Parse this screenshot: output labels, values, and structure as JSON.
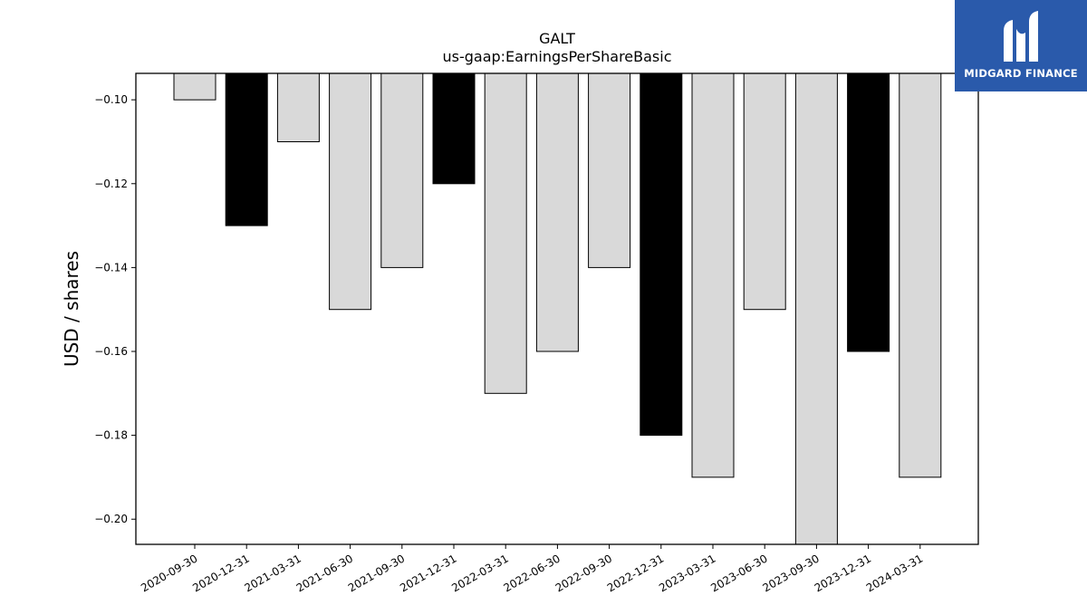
{
  "brand": {
    "name": "MIDGARD FINANCE",
    "logo_icon": "midgard-logo-icon",
    "background": "#2a5aab"
  },
  "chart_data": {
    "type": "bar",
    "title": "GALT",
    "subtitle": "us-gaap:EarningsPerShareBasic",
    "xlabel": "",
    "ylabel": "USD / shares",
    "categories": [
      "2020-09-30",
      "2020-12-31",
      "2021-03-31",
      "2021-06-30",
      "2021-09-30",
      "2021-12-31",
      "2022-03-31",
      "2022-06-30",
      "2022-09-30",
      "2022-12-31",
      "2023-03-31",
      "2023-06-30",
      "2023-09-30",
      "2023-12-31",
      "2024-03-31"
    ],
    "values": [
      -0.1,
      -0.13,
      -0.11,
      -0.15,
      -0.14,
      -0.12,
      -0.17,
      -0.16,
      -0.14,
      -0.18,
      -0.19,
      -0.15,
      -0.21,
      -0.16,
      -0.19
    ],
    "bar_colors": [
      "#d9d9d9",
      "#000000",
      "#d9d9d9",
      "#d9d9d9",
      "#d9d9d9",
      "#000000",
      "#d9d9d9",
      "#d9d9d9",
      "#d9d9d9",
      "#000000",
      "#d9d9d9",
      "#d9d9d9",
      "#d9d9d9",
      "#000000",
      "#d9d9d9"
    ],
    "ylim": [
      -0.206,
      -0.0937
    ],
    "yticks": [
      -0.1,
      -0.12,
      -0.14,
      -0.16,
      -0.18,
      -0.2
    ],
    "ytick_labels": [
      "−0.10",
      "−0.12",
      "−0.14",
      "−0.16",
      "−0.18",
      "−0.20"
    ],
    "grid": false,
    "legend": "none"
  }
}
